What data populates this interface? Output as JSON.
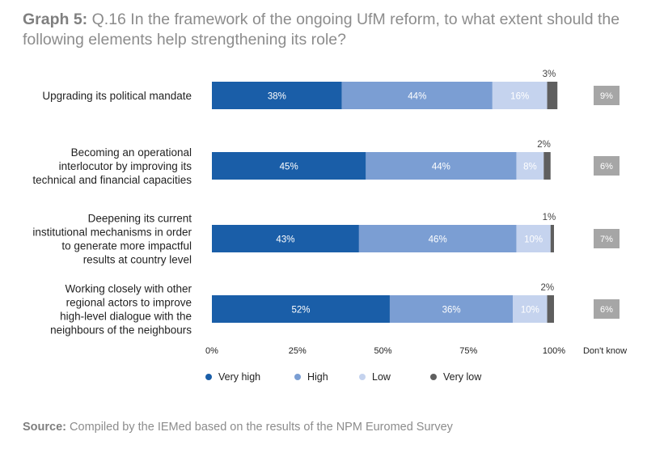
{
  "title": {
    "lead": "Graph 5:",
    "text": "Q.16 In the framework of the ongoing UfM reform, to what extent should the following elements help strengthening its role?"
  },
  "source": {
    "lead": "Source:",
    "text": "Compiled by the IEMed based on the results of the NPM Euromed Survey"
  },
  "chart_data": {
    "type": "bar",
    "orientation": "horizontal",
    "stacked": true,
    "categories": [
      [
        "Upgrading its political mandate"
      ],
      [
        "Becoming an operational",
        "interlocutor by improving its",
        "technical and financial capacities"
      ],
      [
        "Deepening its current",
        "institutional mechanisms in order",
        "to generate more impactful",
        "results at country level"
      ],
      [
        "Working closely with other",
        "regional actors to improve",
        "high-level dialogue with the",
        "neighbours of the neighbours"
      ]
    ],
    "series": [
      {
        "name": "Very high",
        "color": "#1a5ea8",
        "values": [
          38,
          45,
          43,
          52
        ],
        "labels": [
          "38%",
          "45%",
          "43%",
          "52%"
        ]
      },
      {
        "name": "High",
        "color": "#7b9ed3",
        "values": [
          44,
          44,
          46,
          36
        ],
        "labels": [
          "44%",
          "44%",
          "46%",
          "36%"
        ]
      },
      {
        "name": "Low",
        "color": "#c5d3ee",
        "values": [
          16,
          8,
          10,
          10
        ],
        "labels": [
          "16%",
          "8%",
          "10%",
          "10%"
        ]
      },
      {
        "name": "Very low",
        "color": "#5f5f5f",
        "values": [
          3,
          2,
          1,
          2
        ],
        "labels": [
          "3%",
          "2%",
          "1%",
          "2%"
        ]
      }
    ],
    "dont_know": {
      "label": "Don't know",
      "color": "#a6a6a6",
      "values": [
        9,
        6,
        7,
        6
      ],
      "labels": [
        "9%",
        "6%",
        "7%",
        "6%"
      ]
    },
    "xlim": [
      0,
      100
    ],
    "xticks": [
      0,
      25,
      50,
      75,
      100
    ],
    "xtick_labels": [
      "0%",
      "25%",
      "50%",
      "75%",
      "100%"
    ],
    "grid": false,
    "legend_position": "bottom"
  }
}
